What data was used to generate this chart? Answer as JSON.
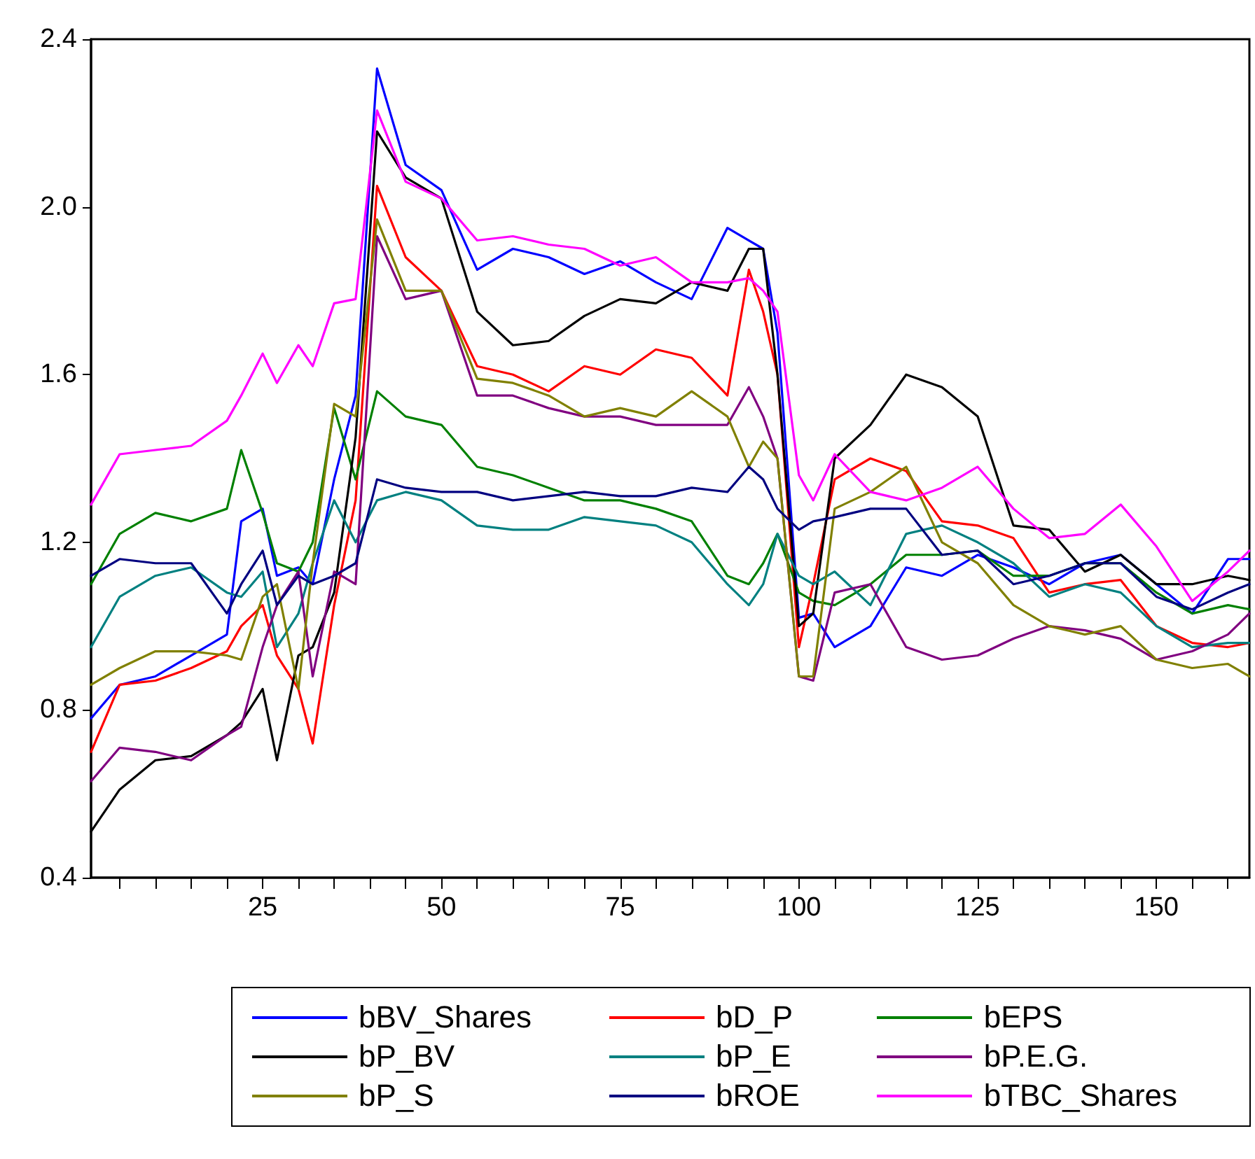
{
  "chart_data": {
    "type": "line",
    "x": [
      1,
      5,
      10,
      15,
      20,
      22,
      25,
      27,
      30,
      32,
      35,
      38,
      41,
      45,
      50,
      55,
      60,
      65,
      70,
      75,
      80,
      85,
      90,
      93,
      95,
      97,
      100,
      102,
      105,
      110,
      115,
      120,
      125,
      130,
      135,
      140,
      145,
      150,
      155,
      160,
      163
    ],
    "series": [
      {
        "name": "bBV_Shares",
        "color": "#0000ff",
        "values": [
          0.78,
          0.86,
          0.88,
          0.93,
          0.98,
          1.25,
          1.28,
          1.12,
          1.14,
          1.1,
          1.35,
          1.55,
          2.33,
          2.1,
          2.04,
          1.85,
          1.9,
          1.88,
          1.84,
          1.87,
          1.82,
          1.78,
          1.95,
          1.92,
          1.9,
          1.7,
          1.02,
          1.03,
          0.95,
          1.0,
          1.14,
          1.12,
          1.17,
          1.14,
          1.1,
          1.15,
          1.17,
          1.1,
          1.03,
          1.16,
          1.16
        ]
      },
      {
        "name": "bD_P",
        "color": "#ff0000",
        "values": [
          0.7,
          0.86,
          0.87,
          0.9,
          0.94,
          1.0,
          1.05,
          0.93,
          0.85,
          0.72,
          1.05,
          1.3,
          2.05,
          1.88,
          1.8,
          1.62,
          1.6,
          1.56,
          1.62,
          1.6,
          1.66,
          1.64,
          1.55,
          1.85,
          1.75,
          1.6,
          0.95,
          1.1,
          1.35,
          1.4,
          1.37,
          1.25,
          1.24,
          1.21,
          1.08,
          1.1,
          1.11,
          1.0,
          0.96,
          0.95,
          0.96
        ]
      },
      {
        "name": "bEPS",
        "color": "#008000",
        "values": [
          1.1,
          1.22,
          1.27,
          1.25,
          1.28,
          1.42,
          1.27,
          1.15,
          1.13,
          1.2,
          1.52,
          1.35,
          1.56,
          1.5,
          1.48,
          1.38,
          1.36,
          1.33,
          1.3,
          1.3,
          1.28,
          1.25,
          1.12,
          1.1,
          1.15,
          1.22,
          1.08,
          1.06,
          1.05,
          1.1,
          1.17,
          1.17,
          1.18,
          1.12,
          1.12,
          1.15,
          1.15,
          1.08,
          1.03,
          1.05,
          1.04
        ]
      },
      {
        "name": "bP_BV",
        "color": "#000000",
        "values": [
          0.51,
          0.61,
          0.68,
          0.69,
          0.74,
          0.77,
          0.85,
          0.68,
          0.93,
          0.95,
          1.08,
          1.45,
          2.18,
          2.07,
          2.02,
          1.75,
          1.67,
          1.68,
          1.74,
          1.78,
          1.77,
          1.82,
          1.8,
          1.9,
          1.9,
          1.6,
          1.0,
          1.03,
          1.4,
          1.48,
          1.6,
          1.57,
          1.5,
          1.24,
          1.23,
          1.13,
          1.17,
          1.1,
          1.1,
          1.12,
          1.11
        ]
      },
      {
        "name": "bP_E",
        "color": "#008080",
        "values": [
          0.95,
          1.07,
          1.12,
          1.14,
          1.08,
          1.07,
          1.13,
          0.95,
          1.03,
          1.15,
          1.3,
          1.2,
          1.3,
          1.32,
          1.3,
          1.24,
          1.23,
          1.23,
          1.26,
          1.25,
          1.24,
          1.2,
          1.1,
          1.05,
          1.1,
          1.22,
          1.12,
          1.1,
          1.13,
          1.05,
          1.22,
          1.24,
          1.2,
          1.15,
          1.07,
          1.1,
          1.08,
          1.0,
          0.95,
          0.96,
          0.96
        ]
      },
      {
        "name": "bP.E.G.",
        "color": "#800080",
        "values": [
          0.63,
          0.71,
          0.7,
          0.68,
          0.74,
          0.76,
          0.95,
          1.05,
          1.13,
          0.88,
          1.13,
          1.1,
          1.93,
          1.78,
          1.8,
          1.55,
          1.55,
          1.52,
          1.5,
          1.5,
          1.48,
          1.48,
          1.48,
          1.57,
          1.5,
          1.4,
          0.88,
          0.87,
          1.08,
          1.1,
          0.95,
          0.92,
          0.93,
          0.97,
          1.0,
          0.99,
          0.97,
          0.92,
          0.94,
          0.98,
          1.03
        ]
      },
      {
        "name": "bP_S",
        "color": "#808000",
        "values": [
          0.86,
          0.9,
          0.94,
          0.94,
          0.93,
          0.92,
          1.07,
          1.1,
          0.85,
          1.15,
          1.53,
          1.5,
          1.97,
          1.8,
          1.8,
          1.59,
          1.58,
          1.55,
          1.5,
          1.52,
          1.5,
          1.56,
          1.5,
          1.38,
          1.44,
          1.4,
          0.88,
          0.88,
          1.28,
          1.32,
          1.38,
          1.2,
          1.15,
          1.05,
          1.0,
          0.98,
          1.0,
          0.92,
          0.9,
          0.91,
          0.88
        ]
      },
      {
        "name": "bROE",
        "color": "#000080",
        "values": [
          1.12,
          1.16,
          1.15,
          1.15,
          1.03,
          1.1,
          1.18,
          1.05,
          1.12,
          1.1,
          1.12,
          1.15,
          1.35,
          1.33,
          1.32,
          1.32,
          1.3,
          1.31,
          1.32,
          1.31,
          1.31,
          1.33,
          1.32,
          1.38,
          1.35,
          1.28,
          1.23,
          1.25,
          1.26,
          1.28,
          1.28,
          1.17,
          1.18,
          1.1,
          1.12,
          1.15,
          1.15,
          1.07,
          1.04,
          1.08,
          1.1
        ]
      },
      {
        "name": "bTBC_Shares",
        "color": "#ff00ff",
        "values": [
          1.29,
          1.41,
          1.42,
          1.43,
          1.49,
          1.55,
          1.65,
          1.58,
          1.67,
          1.62,
          1.77,
          1.78,
          2.23,
          2.06,
          2.02,
          1.92,
          1.93,
          1.91,
          1.9,
          1.86,
          1.88,
          1.82,
          1.82,
          1.83,
          1.8,
          1.75,
          1.36,
          1.3,
          1.41,
          1.32,
          1.3,
          1.33,
          1.38,
          1.28,
          1.21,
          1.22,
          1.29,
          1.19,
          1.06,
          1.13,
          1.18
        ]
      }
    ],
    "xlim": [
      1,
      163
    ],
    "xticks": [
      {
        "value": 5,
        "label": null
      },
      {
        "value": 10,
        "label": null
      },
      {
        "value": 15,
        "label": null
      },
      {
        "value": 20,
        "label": null
      },
      25,
      {
        "value": 30,
        "label": null
      },
      {
        "value": 35,
        "label": null
      },
      {
        "value": 40,
        "label": null
      },
      {
        "value": 45,
        "label": null
      },
      50,
      {
        "value": 55,
        "label": null
      },
      {
        "value": 60,
        "label": null
      },
      {
        "value": 65,
        "label": null
      },
      {
        "value": 70,
        "label": null
      },
      75,
      {
        "value": 80,
        "label": null
      },
      {
        "value": 85,
        "label": null
      },
      {
        "value": 90,
        "label": null
      },
      {
        "value": 95,
        "label": null
      },
      100,
      {
        "value": 105,
        "label": null
      },
      {
        "value": 110,
        "label": null
      },
      {
        "value": 115,
        "label": null
      },
      {
        "value": 120,
        "label": null
      },
      125,
      {
        "value": 130,
        "label": null
      },
      {
        "value": 135,
        "label": null
      },
      {
        "value": 140,
        "label": null
      },
      {
        "value": 145,
        "label": null
      },
      150,
      {
        "value": 155,
        "label": null
      },
      {
        "value": 160,
        "label": null
      }
    ],
    "ylim": [
      0.4,
      2.4
    ],
    "yticks": [
      0.4,
      0.8,
      1.2,
      1.6,
      {
        "value": 2,
        "label": "2.0"
      },
      2.4
    ],
    "grid": false,
    "legend": "bottom",
    "marker": "none",
    "line_style": "solid"
  }
}
